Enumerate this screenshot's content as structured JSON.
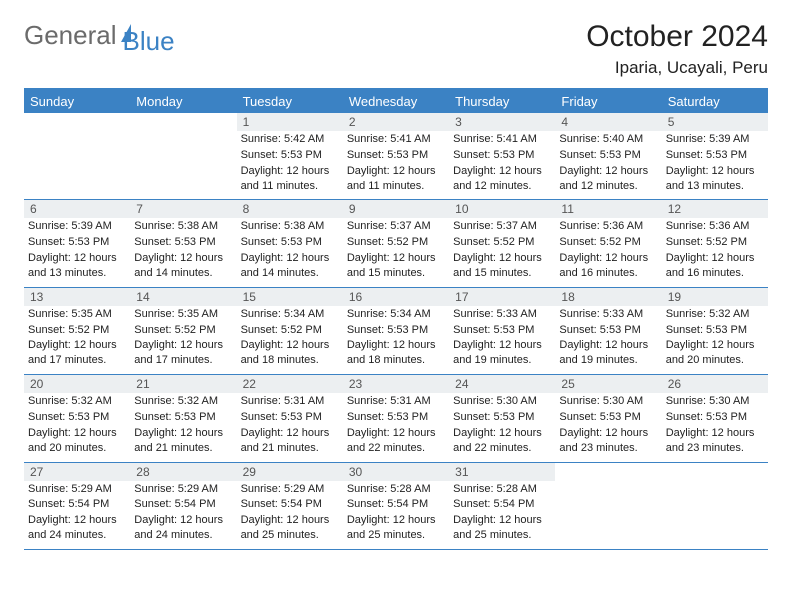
{
  "logo": {
    "part1": "General",
    "part2": "Blue"
  },
  "title": "October 2024",
  "location": "Iparia, Ucayali, Peru",
  "dayHeaders": [
    "Sunday",
    "Monday",
    "Tuesday",
    "Wednesday",
    "Thursday",
    "Friday",
    "Saturday"
  ],
  "colors": {
    "accent": "#3b82c4",
    "daynum_bg": "#eceff1",
    "text": "#222222",
    "logo_gray": "#6b6b6b"
  },
  "weeks": [
    [
      {
        "blank": true
      },
      {
        "blank": true
      },
      {
        "day": "1",
        "sunrise": "Sunrise: 5:42 AM",
        "sunset": "Sunset: 5:53 PM",
        "daylight": "Daylight: 12 hours and 11 minutes."
      },
      {
        "day": "2",
        "sunrise": "Sunrise: 5:41 AM",
        "sunset": "Sunset: 5:53 PM",
        "daylight": "Daylight: 12 hours and 11 minutes."
      },
      {
        "day": "3",
        "sunrise": "Sunrise: 5:41 AM",
        "sunset": "Sunset: 5:53 PM",
        "daylight": "Daylight: 12 hours and 12 minutes."
      },
      {
        "day": "4",
        "sunrise": "Sunrise: 5:40 AM",
        "sunset": "Sunset: 5:53 PM",
        "daylight": "Daylight: 12 hours and 12 minutes."
      },
      {
        "day": "5",
        "sunrise": "Sunrise: 5:39 AM",
        "sunset": "Sunset: 5:53 PM",
        "daylight": "Daylight: 12 hours and 13 minutes."
      }
    ],
    [
      {
        "day": "6",
        "sunrise": "Sunrise: 5:39 AM",
        "sunset": "Sunset: 5:53 PM",
        "daylight": "Daylight: 12 hours and 13 minutes."
      },
      {
        "day": "7",
        "sunrise": "Sunrise: 5:38 AM",
        "sunset": "Sunset: 5:53 PM",
        "daylight": "Daylight: 12 hours and 14 minutes."
      },
      {
        "day": "8",
        "sunrise": "Sunrise: 5:38 AM",
        "sunset": "Sunset: 5:53 PM",
        "daylight": "Daylight: 12 hours and 14 minutes."
      },
      {
        "day": "9",
        "sunrise": "Sunrise: 5:37 AM",
        "sunset": "Sunset: 5:52 PM",
        "daylight": "Daylight: 12 hours and 15 minutes."
      },
      {
        "day": "10",
        "sunrise": "Sunrise: 5:37 AM",
        "sunset": "Sunset: 5:52 PM",
        "daylight": "Daylight: 12 hours and 15 minutes."
      },
      {
        "day": "11",
        "sunrise": "Sunrise: 5:36 AM",
        "sunset": "Sunset: 5:52 PM",
        "daylight": "Daylight: 12 hours and 16 minutes."
      },
      {
        "day": "12",
        "sunrise": "Sunrise: 5:36 AM",
        "sunset": "Sunset: 5:52 PM",
        "daylight": "Daylight: 12 hours and 16 minutes."
      }
    ],
    [
      {
        "day": "13",
        "sunrise": "Sunrise: 5:35 AM",
        "sunset": "Sunset: 5:52 PM",
        "daylight": "Daylight: 12 hours and 17 minutes."
      },
      {
        "day": "14",
        "sunrise": "Sunrise: 5:35 AM",
        "sunset": "Sunset: 5:52 PM",
        "daylight": "Daylight: 12 hours and 17 minutes."
      },
      {
        "day": "15",
        "sunrise": "Sunrise: 5:34 AM",
        "sunset": "Sunset: 5:52 PM",
        "daylight": "Daylight: 12 hours and 18 minutes."
      },
      {
        "day": "16",
        "sunrise": "Sunrise: 5:34 AM",
        "sunset": "Sunset: 5:53 PM",
        "daylight": "Daylight: 12 hours and 18 minutes."
      },
      {
        "day": "17",
        "sunrise": "Sunrise: 5:33 AM",
        "sunset": "Sunset: 5:53 PM",
        "daylight": "Daylight: 12 hours and 19 minutes."
      },
      {
        "day": "18",
        "sunrise": "Sunrise: 5:33 AM",
        "sunset": "Sunset: 5:53 PM",
        "daylight": "Daylight: 12 hours and 19 minutes."
      },
      {
        "day": "19",
        "sunrise": "Sunrise: 5:32 AM",
        "sunset": "Sunset: 5:53 PM",
        "daylight": "Daylight: 12 hours and 20 minutes."
      }
    ],
    [
      {
        "day": "20",
        "sunrise": "Sunrise: 5:32 AM",
        "sunset": "Sunset: 5:53 PM",
        "daylight": "Daylight: 12 hours and 20 minutes."
      },
      {
        "day": "21",
        "sunrise": "Sunrise: 5:32 AM",
        "sunset": "Sunset: 5:53 PM",
        "daylight": "Daylight: 12 hours and 21 minutes."
      },
      {
        "day": "22",
        "sunrise": "Sunrise: 5:31 AM",
        "sunset": "Sunset: 5:53 PM",
        "daylight": "Daylight: 12 hours and 21 minutes."
      },
      {
        "day": "23",
        "sunrise": "Sunrise: 5:31 AM",
        "sunset": "Sunset: 5:53 PM",
        "daylight": "Daylight: 12 hours and 22 minutes."
      },
      {
        "day": "24",
        "sunrise": "Sunrise: 5:30 AM",
        "sunset": "Sunset: 5:53 PM",
        "daylight": "Daylight: 12 hours and 22 minutes."
      },
      {
        "day": "25",
        "sunrise": "Sunrise: 5:30 AM",
        "sunset": "Sunset: 5:53 PM",
        "daylight": "Daylight: 12 hours and 23 minutes."
      },
      {
        "day": "26",
        "sunrise": "Sunrise: 5:30 AM",
        "sunset": "Sunset: 5:53 PM",
        "daylight": "Daylight: 12 hours and 23 minutes."
      }
    ],
    [
      {
        "day": "27",
        "sunrise": "Sunrise: 5:29 AM",
        "sunset": "Sunset: 5:54 PM",
        "daylight": "Daylight: 12 hours and 24 minutes."
      },
      {
        "day": "28",
        "sunrise": "Sunrise: 5:29 AM",
        "sunset": "Sunset: 5:54 PM",
        "daylight": "Daylight: 12 hours and 24 minutes."
      },
      {
        "day": "29",
        "sunrise": "Sunrise: 5:29 AM",
        "sunset": "Sunset: 5:54 PM",
        "daylight": "Daylight: 12 hours and 25 minutes."
      },
      {
        "day": "30",
        "sunrise": "Sunrise: 5:28 AM",
        "sunset": "Sunset: 5:54 PM",
        "daylight": "Daylight: 12 hours and 25 minutes."
      },
      {
        "day": "31",
        "sunrise": "Sunrise: 5:28 AM",
        "sunset": "Sunset: 5:54 PM",
        "daylight": "Daylight: 12 hours and 25 minutes."
      },
      {
        "blank": true
      },
      {
        "blank": true
      }
    ]
  ]
}
